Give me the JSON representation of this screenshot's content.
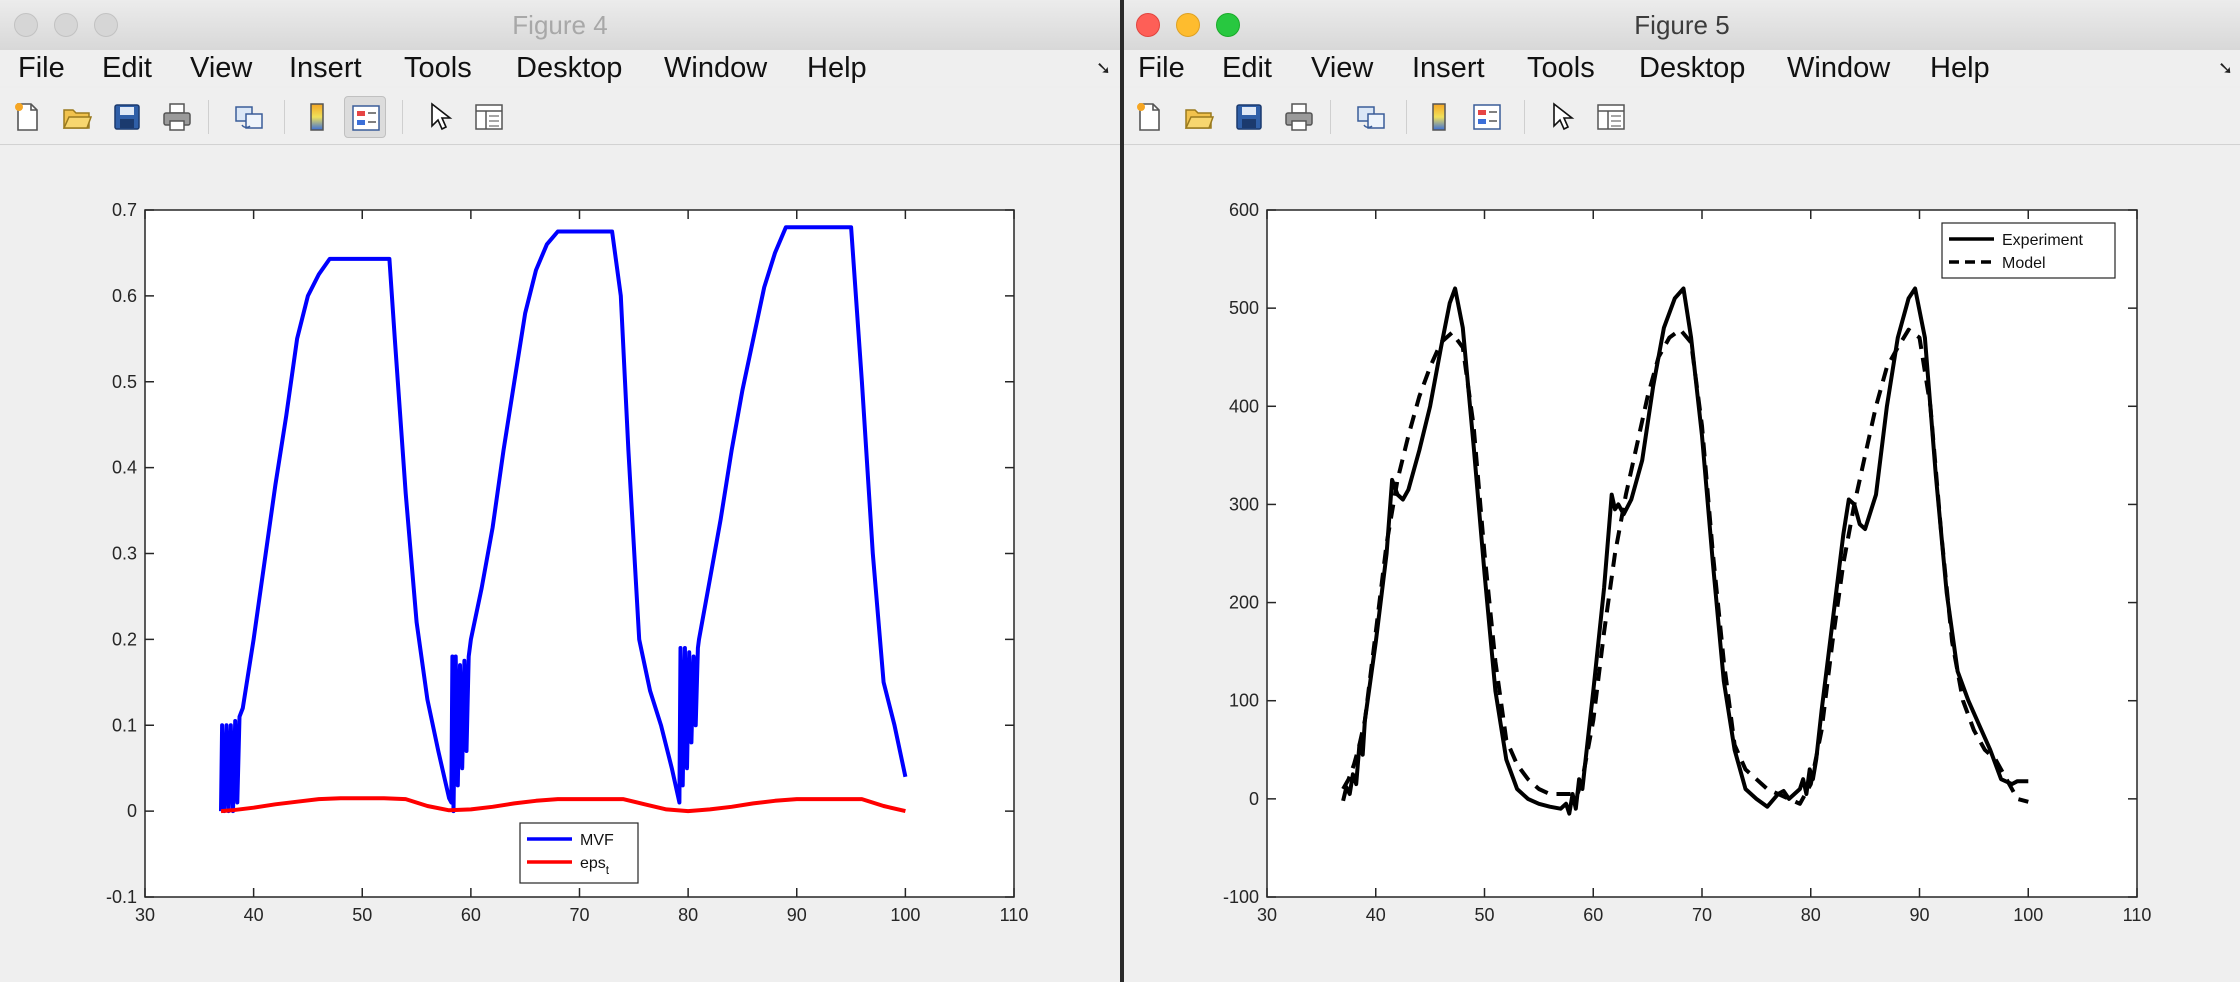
{
  "windows": [
    {
      "title": "Figure 4",
      "menu": [
        "File",
        "Edit",
        "View",
        "Insert",
        "Tools",
        "Desktop",
        "Window",
        "Help"
      ],
      "toolbar": [
        "new-figure-icon",
        "open-file-icon",
        "save-icon",
        "print-icon",
        "link-icon",
        "colorbar-icon",
        "legend-icon",
        "pointer-icon",
        "property-inspector-icon"
      ]
    },
    {
      "title": "Figure 5",
      "menu": [
        "File",
        "Edit",
        "View",
        "Insert",
        "Tools",
        "Desktop",
        "Window",
        "Help"
      ],
      "toolbar": [
        "new-figure-icon",
        "open-file-icon",
        "save-icon",
        "print-icon",
        "link-icon",
        "colorbar-icon",
        "legend-icon",
        "pointer-icon",
        "property-inspector-icon"
      ]
    }
  ],
  "chart_data": [
    {
      "type": "line",
      "title": "",
      "xlabel": "",
      "ylabel": "",
      "xlim": [
        30,
        110
      ],
      "ylim": [
        -0.1,
        0.7
      ],
      "xticks": [
        "30",
        "40",
        "50",
        "60",
        "70",
        "80",
        "90",
        "100",
        "110"
      ],
      "yticks": [
        "-0.1",
        "0",
        "0.1",
        "0.2",
        "0.3",
        "0.4",
        "0.5",
        "0.6",
        "0.7"
      ],
      "grid": false,
      "legend_position": "bottom-center",
      "series": [
        {
          "name": "MVF",
          "legend_main": "MVF",
          "legend_sub": "",
          "color": "#0000ff",
          "dash": "solid",
          "x": [
            37,
            37.1,
            37.3,
            37.5,
            37.7,
            37.9,
            38.1,
            38.3,
            38.5,
            38.7,
            39,
            40,
            41,
            42,
            43,
            44,
            45,
            46,
            47,
            48,
            49,
            50,
            51,
            52,
            52.5,
            53,
            54,
            55,
            56,
            57,
            58,
            58.2,
            58.3,
            58.4,
            58.6,
            58.8,
            59,
            59.2,
            59.4,
            59.6,
            59.8,
            60,
            61,
            62,
            63,
            64,
            65,
            66,
            67,
            68,
            69,
            70,
            71,
            72,
            73,
            73.8,
            74.5,
            75.5,
            76.5,
            77.5,
            78.5,
            79.2,
            79.3,
            79.5,
            79.7,
            79.9,
            80.1,
            80.3,
            80.5,
            80.7,
            80.9,
            81,
            82,
            83,
            84,
            85,
            86,
            87,
            88,
            89,
            90,
            91,
            92,
            93,
            94,
            95,
            96,
            97,
            98,
            99,
            100
          ],
          "y": [
            0.0,
            0.1,
            0.0,
            0.1,
            0.0,
            0.1,
            0.0,
            0.105,
            0.01,
            0.11,
            0.12,
            0.2,
            0.29,
            0.38,
            0.46,
            0.55,
            0.6,
            0.625,
            0.643,
            0.643,
            0.643,
            0.643,
            0.643,
            0.643,
            0.643,
            0.55,
            0.37,
            0.22,
            0.13,
            0.07,
            0.015,
            0.01,
            0.18,
            0.0,
            0.18,
            0.03,
            0.17,
            0.05,
            0.175,
            0.07,
            0.18,
            0.2,
            0.26,
            0.33,
            0.42,
            0.5,
            0.58,
            0.63,
            0.66,
            0.675,
            0.675,
            0.675,
            0.675,
            0.675,
            0.675,
            0.6,
            0.42,
            0.2,
            0.14,
            0.1,
            0.05,
            0.01,
            0.19,
            0.03,
            0.19,
            0.05,
            0.185,
            0.08,
            0.18,
            0.1,
            0.19,
            0.2,
            0.27,
            0.34,
            0.42,
            0.49,
            0.55,
            0.61,
            0.65,
            0.68,
            0.68,
            0.68,
            0.68,
            0.68,
            0.68,
            0.68,
            0.5,
            0.3,
            0.15,
            0.1,
            0.04
          ]
        },
        {
          "name": "eps_t",
          "legend_main": "eps",
          "legend_sub": "t",
          "color": "#ff0000",
          "dash": "solid",
          "x": [
            37,
            38,
            40,
            42,
            44,
            46,
            48,
            50,
            52,
            54,
            56,
            58,
            60,
            62,
            64,
            66,
            68,
            70,
            72,
            74,
            76,
            78,
            80,
            82,
            84,
            86,
            88,
            90,
            92,
            94,
            96,
            98,
            100
          ],
          "y": [
            0.0,
            0.001,
            0.004,
            0.008,
            0.011,
            0.014,
            0.015,
            0.015,
            0.015,
            0.014,
            0.006,
            0.001,
            0.002,
            0.005,
            0.009,
            0.012,
            0.014,
            0.014,
            0.014,
            0.014,
            0.008,
            0.002,
            0.0,
            0.002,
            0.005,
            0.009,
            0.012,
            0.014,
            0.014,
            0.014,
            0.014,
            0.006,
            0.0
          ]
        }
      ]
    },
    {
      "type": "line",
      "title": "",
      "xlabel": "",
      "ylabel": "",
      "xlim": [
        30,
        110
      ],
      "ylim": [
        -100,
        600
      ],
      "xticks": [
        "30",
        "40",
        "50",
        "60",
        "70",
        "80",
        "90",
        "100",
        "110"
      ],
      "yticks": [
        "-100",
        "0",
        "100",
        "200",
        "300",
        "400",
        "500",
        "600"
      ],
      "grid": false,
      "legend_position": "top-right",
      "series": [
        {
          "name": "Experiment",
          "legend_main": "Experiment",
          "legend_sub": "",
          "color": "#000000",
          "dash": "solid",
          "x": [
            37,
            37.3,
            37.6,
            37.9,
            38.2,
            38.5,
            38.8,
            39,
            40,
            41,
            41.5,
            42,
            42.5,
            43,
            44,
            45,
            46,
            46.8,
            47.3,
            48,
            49,
            50,
            51,
            52,
            53,
            54,
            55,
            56,
            57,
            57.5,
            57.8,
            58.1,
            58.4,
            58.7,
            59,
            59.3,
            60,
            61,
            61.7,
            62,
            62.3,
            62.8,
            63.5,
            64.5,
            65.5,
            66.5,
            67.5,
            68.3,
            69,
            70,
            71,
            72,
            73,
            74,
            75,
            76,
            77,
            77.5,
            78,
            78.5,
            79,
            79.3,
            79.6,
            79.9,
            80.2,
            80.5,
            81,
            82,
            83,
            83.5,
            84,
            84.5,
            85,
            86,
            87,
            88,
            89,
            89.6,
            90.5,
            91.5,
            92.5,
            93.5,
            94.5,
            95.5,
            96.5,
            97.5,
            98.5,
            99,
            100
          ],
          "y": [
            -2,
            12,
            5,
            25,
            15,
            55,
            45,
            80,
            160,
            250,
            325,
            310,
            305,
            315,
            355,
            400,
            460,
            505,
            520,
            480,
            360,
            230,
            110,
            40,
            10,
            0,
            -5,
            -8,
            -10,
            -5,
            -15,
            5,
            -10,
            20,
            10,
            40,
            110,
            215,
            310,
            295,
            300,
            290,
            305,
            345,
            420,
            480,
            510,
            520,
            470,
            370,
            240,
            120,
            50,
            10,
            0,
            -8,
            5,
            8,
            0,
            5,
            10,
            20,
            5,
            30,
            20,
            40,
            90,
            180,
            270,
            305,
            300,
            280,
            275,
            310,
            400,
            470,
            510,
            520,
            470,
            330,
            210,
            130,
            100,
            75,
            50,
            20,
            15,
            18,
            18
          ]
        },
        {
          "name": "Model",
          "legend_main": "Model",
          "legend_sub": "",
          "color": "#000000",
          "dash": "dashed",
          "x": [
            37,
            37.5,
            38,
            38.5,
            39,
            40,
            41,
            42,
            43,
            44,
            45,
            46,
            47,
            48,
            49,
            50,
            51,
            52,
            53,
            54,
            55,
            56,
            57,
            58,
            58.5,
            59,
            60,
            61,
            62,
            63,
            64,
            65,
            66,
            67,
            68,
            69,
            70,
            71,
            72,
            73,
            74,
            75,
            76,
            77,
            78,
            79,
            80,
            81,
            82,
            83,
            84,
            85,
            86,
            87,
            88,
            89,
            90,
            91,
            92,
            93,
            94,
            95,
            96,
            97,
            98,
            99,
            100
          ],
          "y": [
            10,
            20,
            35,
            55,
            80,
            170,
            260,
            325,
            370,
            410,
            440,
            465,
            475,
            460,
            380,
            250,
            140,
            60,
            35,
            20,
            10,
            5,
            5,
            5,
            3,
            20,
            80,
            170,
            250,
            310,
            360,
            410,
            450,
            470,
            478,
            465,
            380,
            250,
            140,
            55,
            30,
            20,
            10,
            5,
            0,
            -5,
            15,
            70,
            160,
            240,
            300,
            350,
            400,
            440,
            460,
            478,
            470,
            400,
            270,
            160,
            100,
            70,
            50,
            40,
            20,
            0,
            -3
          ]
        }
      ]
    }
  ]
}
